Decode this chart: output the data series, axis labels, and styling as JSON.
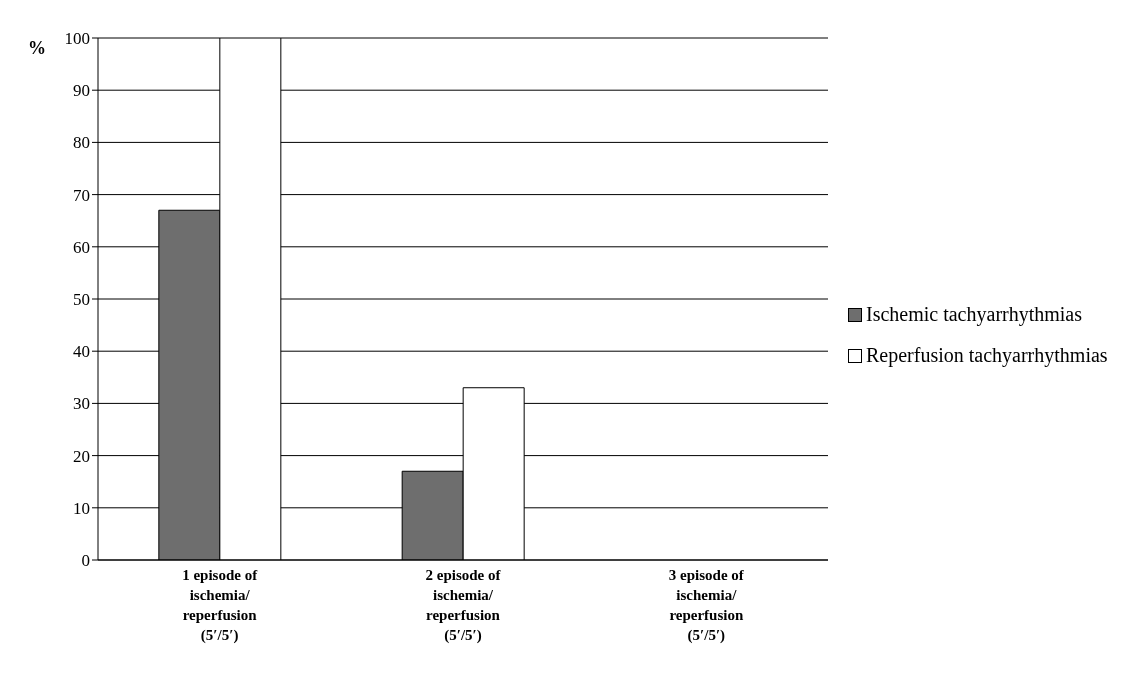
{
  "chart_data": {
    "type": "bar",
    "ylabel": "%",
    "categories": [
      "1 episode of ischemia/reperfusion (5′/5′)",
      "2 episode of ischemia/reperfusion (5′/5′)",
      "3 episode of ischemia/reperfusion (5′/5′)"
    ],
    "series": [
      {
        "name": "Ischemic tachyarrhythmias",
        "color": "#6e6e6e",
        "values": [
          67,
          17,
          0
        ]
      },
      {
        "name": "Reperfusion tachyarrhythmias",
        "color": "#ffffff",
        "values": [
          100,
          33,
          0
        ]
      }
    ],
    "ylim": [
      0,
      100
    ],
    "yticks": [
      0,
      10,
      20,
      30,
      40,
      50,
      60,
      70,
      80,
      90,
      100
    ],
    "grid": "y",
    "legend": "right"
  }
}
